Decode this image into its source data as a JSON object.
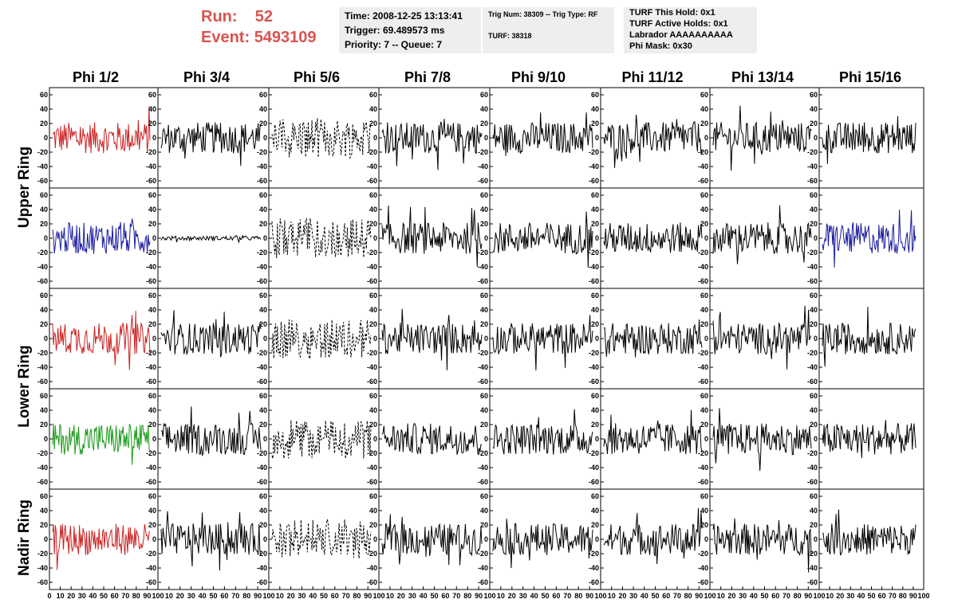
{
  "run": {
    "run_label": "Run:",
    "run_value": "52",
    "event_label": "Event:",
    "event_value": "5493109"
  },
  "info_boxes": {
    "time": "Time: 2008-12-25 13:13:41",
    "trigger": "Trigger: 69.489573 ms",
    "priority": "Priority: 7 -- Queue: 7",
    "trig_num": "Trig Num: 38309 -- Trig Type: RF",
    "turf": "TURF: 38318",
    "turf_hold": "TURF This Hold: 0x1",
    "turf_active": "TURF Active Holds: 0x1",
    "labrador": "Labrador AAAAAAAAAA",
    "phi_mask": "Phi Mask: 0x30"
  },
  "columns": [
    "Phi 1/2",
    "Phi 3/4",
    "Phi 5/6",
    "Phi 7/8",
    "Phi 9/10",
    "Phi 11/12",
    "Phi 13/14",
    "Phi 15/16"
  ],
  "ring_labels": [
    "Upper Ring",
    "Lower Ring",
    "Nadir Ring"
  ],
  "colors": {
    "red": "#cc2222",
    "blue": "#1a1aa0",
    "green": "#1a9a1a",
    "black": "#000000",
    "header_red": "#d9534f",
    "box_gray": "#eeeeee"
  },
  "chart_data": {
    "type": "line",
    "description_rows": 5,
    "xlim": [
      0,
      100
    ],
    "ylim": [
      -60,
      60
    ],
    "y_ticks": [
      "60",
      "40",
      "20",
      "0",
      "-20",
      "-40",
      "-60"
    ],
    "x_tick_labels": [
      "0",
      "10",
      "20",
      "30",
      "40",
      "50",
      "60",
      "70",
      "80",
      "90",
      "100"
    ],
    "panel_styles": [
      [
        "red",
        "black",
        "dashed",
        "black",
        "black",
        "black",
        "black",
        "black"
      ],
      [
        "blue",
        "flat",
        "dashed",
        "black",
        "black",
        "black",
        "black",
        "blue"
      ],
      [
        "red",
        "black",
        "dashed",
        "black",
        "black",
        "black",
        "black",
        "black"
      ],
      [
        "green",
        "black",
        "dashed",
        "black",
        "black",
        "black",
        "black",
        "black"
      ],
      [
        "red",
        "black",
        "dashed",
        "black",
        "black",
        "black",
        "black",
        "black"
      ]
    ]
  }
}
